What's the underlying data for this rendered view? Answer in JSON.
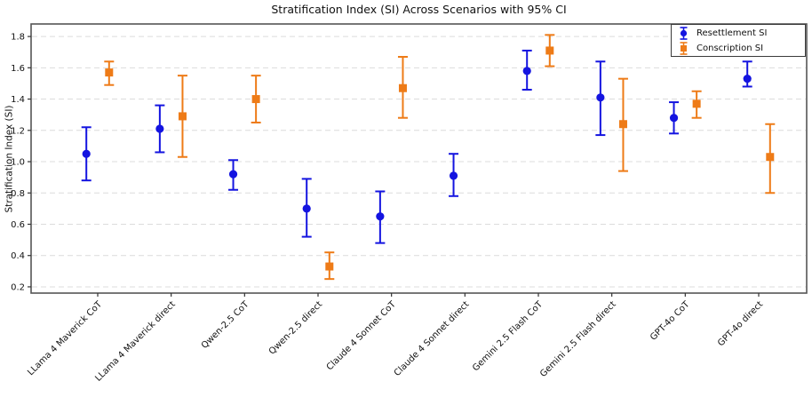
{
  "title": "Stratification Index (SI) Across Scenarios with 95% CI",
  "ylabel": "Stratification Index (SI)",
  "legend": {
    "position": "upper right",
    "items": [
      {
        "label": "Resettlement SI",
        "marker": "circle",
        "color": "#1414e0"
      },
      {
        "label": "Conscription SI",
        "marker": "square",
        "color": "#ee7b17"
      }
    ]
  },
  "colors": {
    "resettlement_blue": "#1414e0",
    "conscription_orange": "#ee7b17",
    "gridline": "#dcdcdc",
    "spine": "#555555",
    "text": "#111111",
    "background": "#ffffff"
  },
  "chart_data": {
    "type": "scatter",
    "subtype": "errorbar-points-95CI",
    "title": "Stratification Index (SI) Across Scenarios with 95% CI",
    "xlabel": "",
    "ylabel": "Stratification Index (SI)",
    "categories": [
      "LLama 4 Maverick CoT",
      "LLama 4 Maverick direct",
      "Qwen-2.5 CoT",
      "Qwen-2.5 direct",
      "Claude 4 Sonnet CoT",
      "Claude 4 Sonnet direct",
      "Gemini 2.5 Flash CoT",
      "Gemini 2.5 Flash direct",
      "GPT-4o CoT",
      "GPT-4o direct"
    ],
    "series": [
      {
        "name": "Resettlement SI",
        "marker": "circle",
        "color": "#1414e0",
        "values": [
          1.05,
          1.21,
          0.92,
          0.7,
          0.65,
          0.91,
          1.58,
          1.41,
          1.28,
          1.53
        ],
        "ci_low": [
          0.88,
          1.06,
          0.82,
          0.52,
          0.48,
          0.78,
          1.46,
          1.17,
          1.18,
          1.48
        ],
        "ci_high": [
          1.22,
          1.36,
          1.01,
          0.89,
          0.81,
          1.05,
          1.71,
          1.64,
          1.38,
          1.64
        ]
      },
      {
        "name": "Conscription SI",
        "marker": "square",
        "color": "#ee7b17",
        "values": [
          1.57,
          1.29,
          1.4,
          0.33,
          1.47,
          null,
          1.71,
          1.24,
          1.37,
          1.03
        ],
        "ci_low": [
          1.49,
          1.03,
          1.25,
          0.25,
          1.28,
          null,
          1.61,
          0.94,
          1.28,
          0.8
        ],
        "ci_high": [
          1.64,
          1.55,
          1.55,
          0.42,
          1.67,
          null,
          1.81,
          1.53,
          1.45,
          1.24
        ]
      }
    ],
    "ylim": [
      0.16,
      1.88
    ],
    "yticks": [
      0.2,
      0.4,
      0.6,
      0.8,
      1.0,
      1.2,
      1.4,
      1.6,
      1.8
    ],
    "ytick_labels": [
      "0.2",
      "0.4",
      "0.6",
      "0.8",
      "1.0",
      "1.2",
      "1.4",
      "1.6",
      "1.8"
    ],
    "x_tick_rotation": 45,
    "grid": "horizontal-dashed",
    "legend_position": "upper right"
  }
}
